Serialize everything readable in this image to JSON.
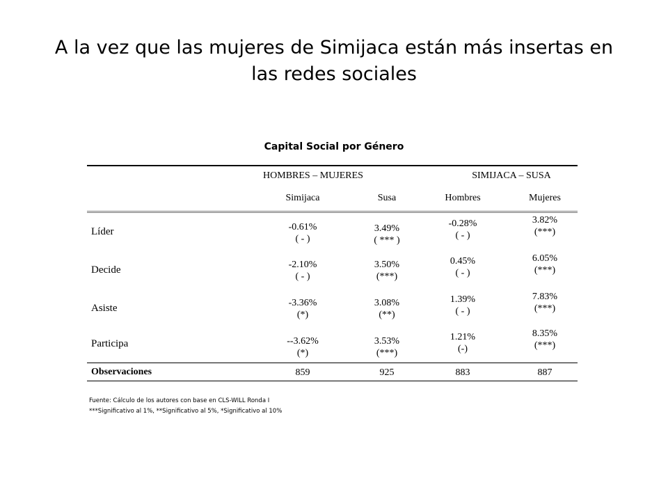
{
  "title": "A la vez que las mujeres de Simijaca están más insertas en las redes sociales",
  "table": {
    "caption": "Capital Social por Género",
    "group_headers": [
      "HOMBRES – MUJERES",
      "SIMIJACA – SUSA"
    ],
    "sub_headers": [
      "Simijaca",
      "Susa",
      "Hombres",
      "Mujeres"
    ],
    "rows": [
      {
        "label": "Líder",
        "cells": [
          {
            "value": "-0.61%",
            "sig": "( - )"
          },
          {
            "value": "3.49%",
            "sig": "( *** )"
          },
          {
            "value": "-0.28%",
            "sig": "( - )"
          },
          {
            "value": "3.82%",
            "sig": "(***)"
          }
        ]
      },
      {
        "label": "Decide",
        "cells": [
          {
            "value": "-2.10%",
            "sig": "( - )"
          },
          {
            "value": "3.50%",
            "sig": "(***)"
          },
          {
            "value": "0.45%",
            "sig": "( - )"
          },
          {
            "value": "6.05%",
            "sig": "(***)"
          }
        ]
      },
      {
        "label": "Asiste",
        "cells": [
          {
            "value": "-3.36%",
            "sig": "(*)"
          },
          {
            "value": "3.08%",
            "sig": "(**)"
          },
          {
            "value": "1.39%",
            "sig": "( - )"
          },
          {
            "value": "7.83%",
            "sig": "(***)"
          }
        ]
      },
      {
        "label": "Participa",
        "cells": [
          {
            "value": "--3.62%",
            "sig": "(*)"
          },
          {
            "value": "3.53%",
            "sig": "(***)"
          },
          {
            "value": "1.21%",
            "sig": "(-)"
          },
          {
            "value": "8.35%",
            "sig": "(***)"
          }
        ]
      }
    ],
    "observations": {
      "label": "Observaciones",
      "values": [
        "859",
        "925",
        "883",
        "887"
      ]
    }
  },
  "notes": [
    "Fuente: Cálculo de los autores con base en CLS-WILL Ronda I",
    "***Significativo al 1%, **Significativo al 5%, *Significativo al 10%"
  ]
}
